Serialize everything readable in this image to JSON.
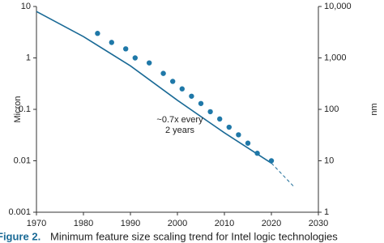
{
  "chart_data": {
    "type": "scatter",
    "x": [
      1983,
      1986,
      1989,
      1991,
      1994,
      1997,
      1999,
      2001,
      2003,
      2005,
      2007,
      2009,
      2011,
      2013,
      2015,
      2017,
      2020
    ],
    "values": [
      3,
      2,
      1.5,
      1.0,
      0.8,
      0.5,
      0.35,
      0.25,
      0.18,
      0.13,
      0.09,
      0.065,
      0.045,
      0.032,
      0.022,
      0.014,
      0.01
    ],
    "color": "#1f78a8",
    "lines": [
      {
        "x": [
          1970,
          1980,
          1990,
          2000,
          2010,
          2020
        ],
        "values": [
          8,
          2.6,
          0.7,
          0.15,
          0.035,
          0.009
        ],
        "style": "solid",
        "color": "#1a6a96"
      },
      {
        "x": [
          2020,
          2025
        ],
        "values": [
          0.009,
          0.003
        ],
        "style": "dashed",
        "color": "#1a6a96"
      }
    ],
    "xlim": [
      1970,
      2030
    ],
    "xticks": [
      1970,
      1980,
      1990,
      2000,
      2010,
      2020,
      2030
    ],
    "ylim": [
      0.001,
      10
    ],
    "yticks": [
      0.001,
      0.01,
      0.1,
      1,
      10
    ],
    "log_y": true,
    "y2lim": [
      1,
      10000
    ],
    "y2ticks": [
      1,
      10,
      100,
      {
        "value": 1000,
        "label": "1,000"
      },
      {
        "value": 10000,
        "label": "10,000"
      }
    ],
    "ylabel": "Micron",
    "y2label": "nm",
    "annotation": [
      "~0.7x every",
      "2 years"
    ],
    "caption_label": "Figure 2.",
    "caption": "Minimum feature size scaling trend for Intel logic technologies"
  }
}
